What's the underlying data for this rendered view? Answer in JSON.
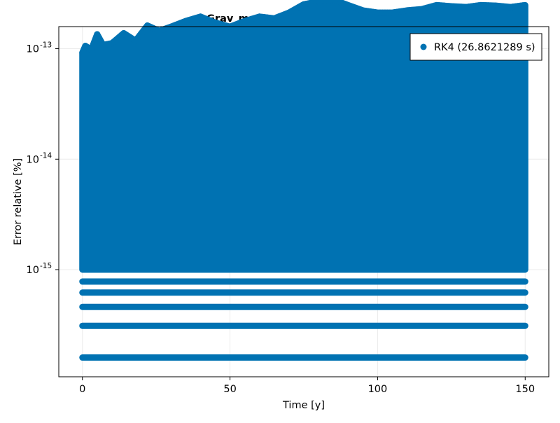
{
  "chart_data": {
    "type": "scatter",
    "title": "Grav_mag_err_stepsize=0.01 days",
    "xlabel": "Time [y]",
    "ylabel": "Error relative [%]",
    "xlim": [
      -8,
      158
    ],
    "ylim_log10": [
      -15.97,
      -12.8
    ],
    "yscale": "log10",
    "grid": true,
    "legend_position": "top-right",
    "x_ticks": [
      0,
      50,
      100,
      150
    ],
    "x_tick_labels": [
      "0",
      "50",
      "100",
      "150"
    ],
    "y_ticks_log10": [
      -15,
      -14,
      -13
    ],
    "y_tick_labels": [
      {
        "base": "10",
        "exp": "-15"
      },
      {
        "base": "10",
        "exp": "-14"
      },
      {
        "base": "10",
        "exp": "-13"
      }
    ],
    "x_range": [
      0,
      150
    ],
    "series": [
      {
        "name": "RK4 (26.8621289 s)",
        "color": "#0072B2",
        "dense_band": {
          "lower": 1e-15,
          "upper_envelope": [
            [
              0,
              9.2e-14
            ],
            [
              1,
              1.06e-13
            ],
            [
              3,
              9.8e-14
            ],
            [
              5,
              1.35e-13
            ],
            [
              7,
              1.08e-13
            ],
            [
              10,
              1.12e-13
            ],
            [
              14,
              1.38e-13
            ],
            [
              18,
              1.18e-13
            ],
            [
              22,
              1.62e-13
            ],
            [
              26,
              1.45e-13
            ],
            [
              30,
              1.58e-13
            ],
            [
              35,
              1.78e-13
            ],
            [
              40,
              1.95e-13
            ],
            [
              45,
              1.72e-13
            ],
            [
              50,
              1.58e-13
            ],
            [
              55,
              1.78e-13
            ],
            [
              60,
              1.95e-13
            ],
            [
              65,
              1.88e-13
            ],
            [
              70,
              2.12e-13
            ],
            [
              75,
              2.52e-13
            ],
            [
              80,
              2.68e-13
            ],
            [
              85,
              2.78e-13
            ],
            [
              90,
              2.48e-13
            ],
            [
              95,
              2.22e-13
            ],
            [
              100,
              2.12e-13
            ],
            [
              105,
              2.12e-13
            ],
            [
              110,
              2.22e-13
            ],
            [
              115,
              2.28e-13
            ],
            [
              120,
              2.48e-13
            ],
            [
              125,
              2.42e-13
            ],
            [
              130,
              2.38e-13
            ],
            [
              135,
              2.48e-13
            ],
            [
              140,
              2.45e-13
            ],
            [
              145,
              2.38e-13
            ],
            [
              150,
              2.48e-13
            ]
          ]
        },
        "discrete_levels": [
          7.8e-16,
          6.2e-16,
          4.6e-16,
          3.1e-16,
          1.6e-16
        ]
      }
    ]
  }
}
